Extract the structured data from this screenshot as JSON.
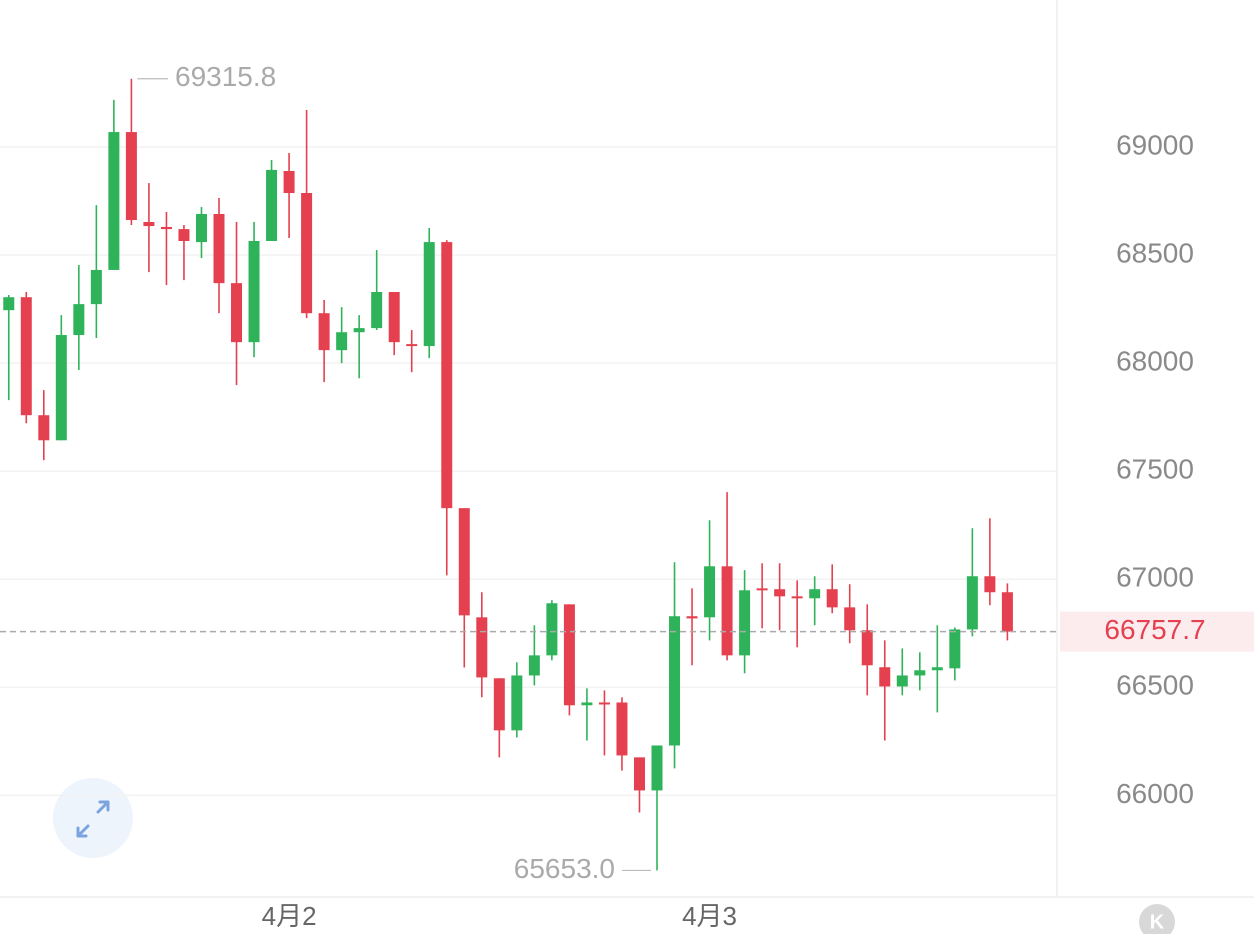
{
  "chart_data": {
    "type": "candlestick",
    "categories": [
      null,
      null,
      null,
      null,
      null,
      null,
      null,
      null,
      null,
      null,
      null,
      null,
      null,
      null,
      null,
      null,
      "4月2",
      null,
      null,
      null,
      null,
      null,
      null,
      null,
      null,
      null,
      null,
      null,
      null,
      null,
      null,
      null,
      null,
      null,
      null,
      null,
      null,
      null,
      null,
      null,
      "4月3",
      null,
      null,
      null,
      null,
      null,
      null,
      null,
      null,
      null,
      null,
      null,
      null,
      null,
      null,
      null,
      null,
      null
    ],
    "open": [
      68245,
      68305,
      67759,
      67643,
      68130,
      68273,
      68431,
      69069,
      68653,
      68630,
      68620,
      68560,
      68690,
      68370,
      68097,
      68565,
      68889,
      68787,
      68231,
      68060,
      68143,
      68162,
      68329,
      68088,
      68079,
      68560,
      67329,
      66824,
      66542,
      66301,
      66555,
      66648,
      66884,
      66417,
      66430,
      66430,
      66176,
      66023,
      66231,
      66829,
      66824,
      67060,
      66648,
      66958,
      66954,
      66921,
      66912,
      66954,
      66870,
      66764,
      66593,
      66504,
      66555,
      66579,
      66588,
      66768,
      67014,
      66940
    ],
    "high": [
      68315,
      68329,
      67875,
      68222,
      68454,
      68731,
      69218,
      69315.8,
      68833,
      68699,
      68639,
      68722,
      68764,
      68653,
      68653,
      68940,
      68972,
      69171,
      68292,
      68259,
      68222,
      68523,
      68329,
      68153,
      68625,
      68569,
      67329,
      66940,
      66542,
      66616,
      66787,
      66903,
      66884,
      66495,
      66486,
      66454,
      66176,
      66231,
      67079,
      66958,
      67273,
      67403,
      67042,
      67074,
      67074,
      66995,
      67014,
      67069,
      66977,
      66884,
      66717,
      66680,
      66662,
      66787,
      66777,
      67236,
      67282,
      66981
    ],
    "low": [
      67829,
      67722,
      67551,
      67643,
      67968,
      68116,
      68431,
      68639,
      68421,
      68361,
      68384,
      68486,
      68231,
      67898,
      68028,
      68565,
      68579,
      68208,
      67912,
      68000,
      67930,
      68153,
      68037,
      67958,
      68023,
      67018,
      66592,
      66454,
      66176,
      66268,
      66509,
      66625,
      66370,
      66254,
      66185,
      66115,
      65921,
      65653,
      66125,
      66602,
      66717,
      66625,
      66565,
      66773,
      66764,
      66685,
      66787,
      66843,
      66704,
      66463,
      66254,
      66463,
      66486,
      66384,
      66532,
      66736,
      66880,
      66717
    ],
    "close": [
      68305,
      67759,
      67643,
      68130,
      68273,
      68431,
      69069,
      68662,
      68634,
      68620,
      68565,
      68690,
      68370,
      68097,
      68565,
      68894,
      68787,
      68231,
      68060,
      68143,
      68162,
      68329,
      68097,
      68079,
      68560,
      67329,
      66833,
      66546,
      66301,
      66555,
      66648,
      66889,
      66417,
      66430,
      66421,
      66185,
      66023,
      66231,
      66829,
      66819,
      67060,
      66648,
      66949,
      66949,
      66921,
      66912,
      66954,
      66870,
      66764,
      66602,
      66504,
      66555,
      66579,
      66593,
      66768,
      67014,
      66940,
      66757.7
    ],
    "up_color": "#2fb35a",
    "down_color": "#e5404f",
    "ylim": [
      65530,
      69680
    ],
    "yticks": [
      66000,
      66500,
      67000,
      67500,
      68000,
      68500,
      69000
    ],
    "grid": true,
    "max_label": 69315.8,
    "min_label": {
      "value": 65653,
      "label": "65653.0"
    },
    "last_price": 66757.7
  },
  "logo": "K"
}
